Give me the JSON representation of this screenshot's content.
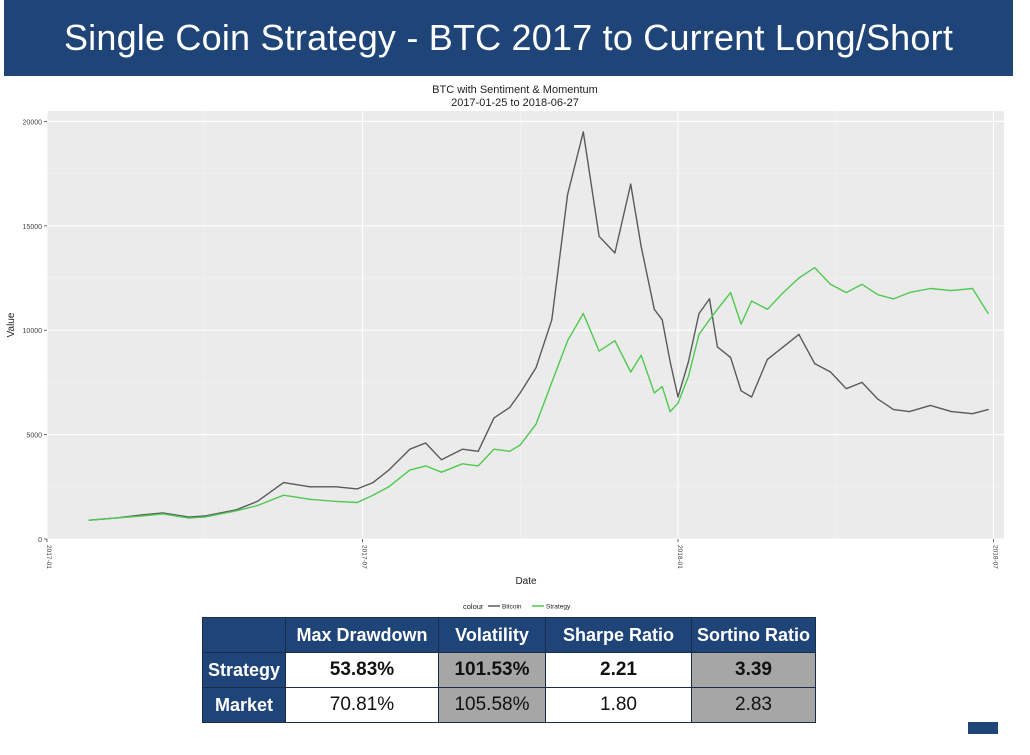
{
  "header": {
    "title": "Single Coin Strategy - BTC 2017 to Current Long/Short"
  },
  "colors": {
    "header_bg": "#1f4477",
    "panel_bg": "#ebebeb",
    "bitcoin": "#5a5a5a",
    "strategy": "#4fc94f",
    "cell_grey": "#a6a6a6"
  },
  "chart_data": {
    "type": "line",
    "title": "BTC with Sentiment & Momentum",
    "subtitle": "2017-01-25 to 2018-06-27",
    "xlabel": "Date",
    "ylabel": "Value",
    "xlim": [
      0,
      18.2
    ],
    "ylim": [
      0,
      20500
    ],
    "y_ticks": [
      0,
      5000,
      10000,
      15000,
      20000
    ],
    "y_tick_labels": [
      "0",
      "5000",
      "10000",
      "15000",
      "20000"
    ],
    "x_ticks": [
      0,
      6,
      12,
      18
    ],
    "x_tick_labels": [
      "2017-01",
      "2017-07",
      "2018-01",
      "2018-07"
    ],
    "legend": {
      "title": "colour",
      "position": "bottom"
    },
    "x_unit": "months since 2017-01-01",
    "series": [
      {
        "name": "Bitcoin",
        "x": [
          0.8,
          1.3,
          1.8,
          2.2,
          2.7,
          3.0,
          3.3,
          3.6,
          4.0,
          4.5,
          5.0,
          5.5,
          5.9,
          6.2,
          6.5,
          6.9,
          7.2,
          7.5,
          7.9,
          8.2,
          8.5,
          8.8,
          9.0,
          9.3,
          9.6,
          9.9,
          10.2,
          10.5,
          10.8,
          11.1,
          11.3,
          11.55,
          11.7,
          11.85,
          12.0,
          12.2,
          12.4,
          12.6,
          12.75,
          13.0,
          13.2,
          13.4,
          13.7,
          14.0,
          14.3,
          14.6,
          14.9,
          15.2,
          15.5,
          15.8,
          16.1,
          16.4,
          16.8,
          17.2,
          17.6,
          17.9
        ],
        "values": [
          900,
          1000,
          1150,
          1250,
          1050,
          1100,
          1250,
          1400,
          1800,
          2700,
          2500,
          2500,
          2400,
          2700,
          3300,
          4300,
          4600,
          3800,
          4300,
          4200,
          5800,
          6300,
          7000,
          8200,
          10500,
          16500,
          19500,
          14500,
          13700,
          17000,
          14000,
          11000,
          10500,
          8500,
          6800,
          8500,
          10800,
          11500,
          9200,
          8700,
          7100,
          6800,
          8600,
          9200,
          9800,
          8400,
          8000,
          7200,
          7500,
          6700,
          6200,
          6100,
          6400,
          6100,
          6000,
          6200
        ],
        "color": "#5a5a5a"
      },
      {
        "name": "Strategy",
        "x": [
          0.8,
          1.3,
          1.8,
          2.2,
          2.7,
          3.0,
          3.3,
          3.6,
          4.0,
          4.5,
          5.0,
          5.5,
          5.9,
          6.2,
          6.5,
          6.9,
          7.2,
          7.5,
          7.9,
          8.2,
          8.5,
          8.8,
          9.0,
          9.3,
          9.6,
          9.9,
          10.2,
          10.5,
          10.8,
          11.1,
          11.3,
          11.55,
          11.7,
          11.85,
          12.0,
          12.2,
          12.4,
          12.6,
          12.75,
          13.0,
          13.2,
          13.4,
          13.7,
          14.0,
          14.3,
          14.6,
          14.9,
          15.2,
          15.5,
          15.8,
          16.1,
          16.4,
          16.8,
          17.2,
          17.6,
          17.9
        ],
        "values": [
          900,
          1000,
          1100,
          1200,
          1000,
          1050,
          1200,
          1350,
          1600,
          2100,
          1900,
          1800,
          1750,
          2100,
          2500,
          3300,
          3500,
          3200,
          3600,
          3500,
          4300,
          4200,
          4500,
          5500,
          7500,
          9500,
          10800,
          9000,
          9500,
          8000,
          8800,
          7000,
          7300,
          6100,
          6500,
          7800,
          9800,
          10500,
          11000,
          11800,
          10300,
          11400,
          11000,
          11800,
          12500,
          13000,
          12200,
          11800,
          12200,
          11700,
          11500,
          11800,
          12000,
          11900,
          12000,
          10800
        ],
        "color": "#4fc94f"
      }
    ]
  },
  "table": {
    "columns": [
      "Max Drawdown",
      "Volatility",
      "Sharpe Ratio",
      "Sortino Ratio"
    ],
    "rows": [
      {
        "label": "Strategy",
        "values": [
          "53.83%",
          "101.53%",
          "2.21",
          "3.39"
        ]
      },
      {
        "label": "Market",
        "values": [
          "70.81%",
          "105.58%",
          "1.80",
          "2.83"
        ]
      }
    ]
  }
}
